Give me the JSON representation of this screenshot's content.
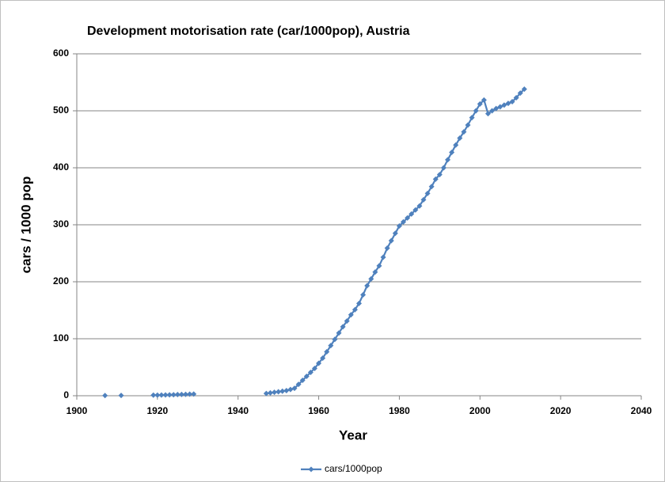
{
  "chart_data": {
    "type": "line",
    "title": "Development motorisation rate (car/1000pop), Austria",
    "x_label": "Year",
    "y_label": "cars / 1000 pop",
    "x": [
      1907,
      1909,
      1911,
      1915,
      1919,
      1920,
      1921,
      1922,
      1923,
      1924,
      1925,
      1926,
      1927,
      1928,
      1929,
      1938,
      1947,
      1948,
      1949,
      1950,
      1951,
      1952,
      1953,
      1954,
      1955,
      1956,
      1957,
      1958,
      1959,
      1960,
      1961,
      1962,
      1963,
      1964,
      1965,
      1966,
      1967,
      1968,
      1969,
      1970,
      1971,
      1972,
      1973,
      1974,
      1975,
      1976,
      1977,
      1978,
      1979,
      1980,
      1981,
      1982,
      1983,
      1984,
      1985,
      1986,
      1987,
      1988,
      1989,
      1990,
      1991,
      1992,
      1993,
      1994,
      1995,
      1996,
      1997,
      1998,
      1999,
      2000,
      2001,
      2002,
      2003,
      2004,
      2005,
      2006,
      2007,
      2008,
      2009,
      2010,
      2011
    ],
    "series": [
      {
        "name": "cars/1000pop",
        "color": "#4f81bd",
        "values": [
          0.3,
          null,
          0.5,
          null,
          1,
          1,
          1.2,
          1.4,
          1.6,
          1.8,
          2,
          2.2,
          2.5,
          2.8,
          3,
          null,
          4,
          5,
          6,
          7,
          8,
          9,
          11,
          13,
          20,
          27,
          34,
          41,
          48,
          57,
          66,
          77,
          88,
          99,
          110,
          121,
          131,
          142,
          151,
          162,
          177,
          193,
          205,
          217,
          228,
          243,
          259,
          272,
          285,
          298,
          305,
          312,
          319,
          326,
          333,
          344,
          355,
          367,
          380,
          388,
          400,
          414,
          427,
          440,
          452,
          463,
          475,
          488,
          500,
          512,
          519,
          495,
          500,
          504,
          507,
          510,
          513,
          516,
          523,
          531,
          538
        ]
      }
    ],
    "xlim": [
      1900,
      2040
    ],
    "xticks": [
      1900,
      1920,
      1940,
      1960,
      1980,
      2000,
      2020,
      2040
    ],
    "ylim": [
      0,
      600
    ],
    "yticks": [
      0,
      100,
      200,
      300,
      400,
      500,
      600
    ],
    "grid": true,
    "legend": "bottom"
  }
}
